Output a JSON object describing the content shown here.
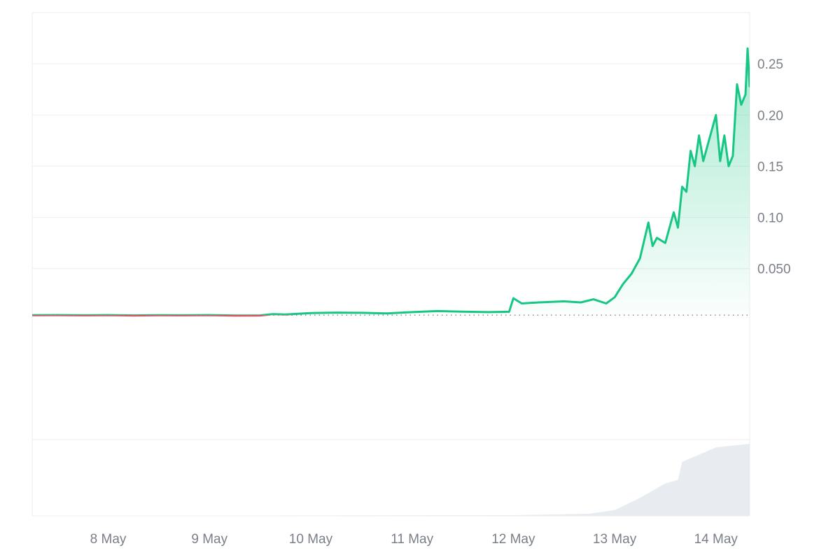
{
  "chart_data": {
    "type": "line",
    "title": "",
    "xlabel": "",
    "ylabel": "",
    "x_ticks": [
      "8 May",
      "9 May",
      "10 May",
      "11 May",
      "12 May",
      "13 May",
      "14 May"
    ],
    "y_ticks": [
      {
        "value": 0.05,
        "label": "0.050"
      },
      {
        "value": 0.1,
        "label": "0.10"
      },
      {
        "value": 0.15,
        "label": "0.15"
      },
      {
        "value": 0.2,
        "label": "0.20"
      },
      {
        "value": 0.25,
        "label": "0.25"
      }
    ],
    "xlim": [
      "7 May 06:00",
      "14 May 08:00"
    ],
    "ylim": [
      -0.05,
      0.3
    ],
    "baseline_value": 0.0045,
    "grid": true,
    "y_axis_position": "right",
    "colors": {
      "up": "#16c784",
      "down": "#ea3943",
      "area_fill": "#16c784",
      "volume": "#e8ecf0",
      "grid": "#eceef1",
      "baseline": "#8a8f96"
    },
    "series": [
      {
        "values": [
          [
            "7 May 06:00",
            0.0045
          ],
          [
            "7 May 12:00",
            0.0046
          ],
          [
            "7 May 18:00",
            0.0044
          ],
          [
            "8 May 00:00",
            0.0046
          ],
          [
            "8 May 06:00",
            0.0043
          ],
          [
            "8 May 12:00",
            0.0045
          ],
          [
            "8 May 18:00",
            0.0044
          ],
          [
            "9 May 00:00",
            0.0046
          ],
          [
            "9 May 06:00",
            0.0042
          ],
          [
            "9 May 12:00",
            0.0043
          ],
          [
            "9 May 15:00",
            0.0055
          ],
          [
            "9 May 18:00",
            0.0052
          ],
          [
            "10 May 00:00",
            0.0065
          ],
          [
            "10 May 06:00",
            0.007
          ],
          [
            "10 May 12:00",
            0.0068
          ],
          [
            "10 May 18:00",
            0.0062
          ],
          [
            "11 May 00:00",
            0.0075
          ],
          [
            "11 May 06:00",
            0.0085
          ],
          [
            "11 May 12:00",
            0.008
          ],
          [
            "11 May 18:00",
            0.0075
          ],
          [
            "11 May 23:00",
            0.0078
          ],
          [
            "12 May 00:00",
            0.021
          ],
          [
            "12 May 02:00",
            0.016
          ],
          [
            "12 May 06:00",
            0.017
          ],
          [
            "12 May 12:00",
            0.018
          ],
          [
            "12 May 16:00",
            0.017
          ],
          [
            "12 May 19:00",
            0.02
          ],
          [
            "12 May 22:00",
            0.016
          ],
          [
            "13 May 00:00",
            0.022
          ],
          [
            "13 May 02:00",
            0.035
          ],
          [
            "13 May 04:00",
            0.045
          ],
          [
            "13 May 06:00",
            0.06
          ],
          [
            "13 May 08:00",
            0.095
          ],
          [
            "13 May 09:00",
            0.072
          ],
          [
            "13 May 10:00",
            0.08
          ],
          [
            "13 May 12:00",
            0.075
          ],
          [
            "13 May 14:00",
            0.105
          ],
          [
            "13 May 15:00",
            0.09
          ],
          [
            "13 May 16:00",
            0.13
          ],
          [
            "13 May 17:00",
            0.125
          ],
          [
            "13 May 18:00",
            0.165
          ],
          [
            "13 May 19:00",
            0.15
          ],
          [
            "13 May 20:00",
            0.18
          ],
          [
            "13 May 21:00",
            0.155
          ],
          [
            "13 May 22:00",
            0.17
          ],
          [
            "14 May 00:00",
            0.2
          ],
          [
            "14 May 01:00",
            0.155
          ],
          [
            "14 May 02:00",
            0.18
          ],
          [
            "14 May 03:00",
            0.15
          ],
          [
            "14 May 04:00",
            0.16
          ],
          [
            "14 May 05:00",
            0.23
          ],
          [
            "14 May 06:00",
            0.21
          ],
          [
            "14 May 07:00",
            0.22
          ],
          [
            "14 May 07:30",
            0.265
          ],
          [
            "14 May 08:00",
            0.228
          ]
        ]
      }
    ],
    "volume": {
      "values": [
        [
          "7 May 06:00",
          0
        ],
        [
          "12 May 00:00",
          0.01
        ],
        [
          "12 May 18:00",
          0.03
        ],
        [
          "13 May 00:00",
          0.08
        ],
        [
          "13 May 06:00",
          0.25
        ],
        [
          "13 May 12:00",
          0.45
        ],
        [
          "13 May 15:00",
          0.5
        ],
        [
          "13 May 16:00",
          0.75
        ],
        [
          "13 May 20:00",
          0.85
        ],
        [
          "14 May 00:00",
          0.95
        ],
        [
          "14 May 08:00",
          1.0
        ]
      ]
    }
  }
}
